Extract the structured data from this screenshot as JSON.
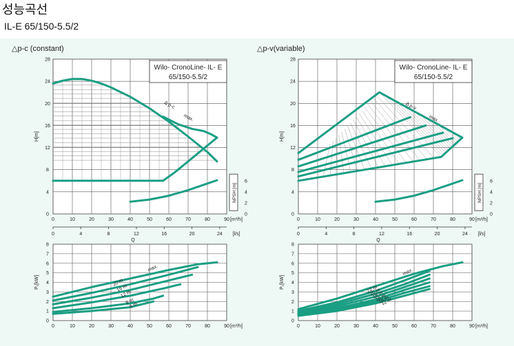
{
  "page": {
    "title": "성능곡선",
    "model": "IL-E 65/150-5.5/2"
  },
  "colors": {
    "curve": "#1a9e83",
    "grid": "#555555",
    "hatch": "#888888",
    "panel_bg": "#eef8f5"
  },
  "chart_data": [
    {
      "id": "h_constant",
      "type": "line",
      "title": "△p-c (constant)",
      "legend_box": [
        "Wilo- CronoLine- IL- E",
        "65/150-5.5/2"
      ],
      "ylabel": "H[m]",
      "x_unit": "[m³/h]",
      "xlim": [
        0,
        90
      ],
      "ylim": [
        0,
        28
      ],
      "x_ticks": [
        0,
        10,
        20,
        30,
        40,
        50,
        60,
        70,
        80,
        90
      ],
      "y_ticks": [
        0,
        4,
        8,
        12,
        16,
        20,
        24,
        28
      ],
      "annotations": [
        "Δ p-c",
        "max."
      ],
      "series": [
        {
          "role": "max",
          "x": [
            0,
            5,
            10,
            15,
            20,
            25,
            30,
            40,
            50,
            60,
            70,
            80,
            85
          ],
          "y": [
            23.6,
            24.1,
            24.4,
            24.4,
            24.1,
            23.6,
            22.9,
            21.2,
            19.1,
            16.7,
            14.0,
            11.2,
            9.5
          ]
        },
        {
          "role": "max-left",
          "x": [
            0,
            5,
            10,
            15
          ],
          "y": [
            23.6,
            24.1,
            24.4,
            24.4
          ]
        },
        {
          "role": "max-right",
          "x": [
            57,
            65,
            72,
            78,
            82,
            85
          ],
          "y": [
            17.6,
            16.2,
            15.4,
            15.0,
            14.4,
            13.8
          ]
        },
        {
          "role": "min",
          "x": [
            0,
            57
          ],
          "y": [
            6,
            6
          ]
        },
        {
          "role": "min-curve",
          "x": [
            57,
            63,
            70,
            78,
            85
          ],
          "y": [
            6,
            7.5,
            9.5,
            11.8,
            13.8
          ]
        }
      ],
      "npsh": {
        "label": "NPSH [m]",
        "ticks": [
          0,
          2,
          4,
          6
        ],
        "x": [
          40,
          50,
          60,
          70,
          80,
          85
        ],
        "y": [
          2.2,
          2.6,
          3.3,
          4.3,
          5.5,
          6.1
        ]
      },
      "secondary_axis": {
        "unit": "[l/s]",
        "ticks": [
          0,
          4,
          8,
          12,
          16,
          20,
          24
        ]
      },
      "center_label": "Q"
    },
    {
      "id": "h_variable",
      "type": "line",
      "title": "△p-v(variable)",
      "legend_box": [
        "Wilo- CronoLine- IL- E",
        "65/150-5.5/2"
      ],
      "ylabel": "H[m]",
      "x_unit": "[m³/h]",
      "xlim": [
        0,
        90
      ],
      "ylim": [
        0,
        28
      ],
      "x_ticks": [
        0,
        10,
        20,
        30,
        40,
        50,
        60,
        70,
        80,
        90
      ],
      "y_ticks": [
        0,
        4,
        8,
        12,
        16,
        20,
        24,
        28
      ],
      "annotations": [
        "Δ p-v",
        "max."
      ],
      "series": [
        {
          "role": "envelope-upper",
          "x": [
            0,
            42,
            85
          ],
          "y": [
            11,
            22,
            13.8
          ]
        },
        {
          "role": "envelope-lower",
          "x": [
            0,
            74,
            85
          ],
          "y": [
            6,
            10.3,
            13.8
          ]
        },
        {
          "role": "level",
          "x": [
            0,
            58
          ],
          "y": [
            9.8,
            17.5
          ]
        },
        {
          "role": "level",
          "x": [
            0,
            66
          ],
          "y": [
            8.6,
            16.0
          ]
        },
        {
          "role": "level",
          "x": [
            0,
            75
          ],
          "y": [
            7.6,
            14.7
          ]
        },
        {
          "role": "level",
          "x": [
            0,
            80
          ],
          "y": [
            6.8,
            13.7
          ]
        }
      ],
      "npsh": {
        "label": "NPSH [m]",
        "ticks": [
          0,
          2,
          4,
          6
        ],
        "x": [
          40,
          50,
          60,
          70,
          80,
          85
        ],
        "y": [
          2.2,
          2.6,
          3.3,
          4.3,
          5.5,
          6.1
        ]
      },
      "secondary_axis": {
        "unit": "[l/s]",
        "ticks": [
          0,
          4,
          8,
          12,
          16,
          20,
          24
        ]
      },
      "center_label": "Q"
    },
    {
      "id": "p_constant",
      "type": "line",
      "ylabel": "P₁[kW]",
      "x_unit": "[m³/h]",
      "xlim": [
        0,
        90
      ],
      "ylim": [
        0,
        8
      ],
      "x_ticks": [
        0,
        10,
        20,
        30,
        40,
        50,
        60,
        70,
        80,
        90
      ],
      "y_ticks": [
        0,
        1,
        2,
        3,
        4,
        5,
        6,
        7,
        8
      ],
      "series": [
        {
          "name": "max.",
          "x": [
            0,
            20,
            40,
            60,
            75,
            85
          ],
          "y": [
            2.5,
            3.5,
            4.4,
            5.3,
            5.9,
            6.1
          ]
        },
        {
          "name": "20 m",
          "x": [
            0,
            20,
            40,
            60,
            75
          ],
          "y": [
            2.1,
            2.9,
            3.8,
            4.8,
            5.6
          ]
        },
        {
          "name": "16 m",
          "x": [
            0,
            20,
            40,
            60,
            72
          ],
          "y": [
            1.7,
            2.4,
            3.2,
            4.2,
            4.8
          ]
        },
        {
          "name": "12 m",
          "x": [
            0,
            20,
            40,
            58,
            66
          ],
          "y": [
            1.3,
            1.9,
            2.6,
            3.4,
            3.8
          ]
        },
        {
          "name": "8 m",
          "x": [
            0,
            20,
            40,
            52,
            57
          ],
          "y": [
            0.9,
            1.3,
            1.8,
            2.3,
            2.6
          ]
        },
        {
          "name": "6 m",
          "x": [
            0,
            20,
            40,
            48,
            52
          ],
          "y": [
            0.7,
            1.0,
            1.4,
            1.8,
            2.0
          ]
        }
      ]
    },
    {
      "id": "p_variable",
      "type": "line",
      "ylabel": "P₁[kW]",
      "x_unit": "[m³/h]",
      "xlim": [
        0,
        90
      ],
      "ylim": [
        0,
        8
      ],
      "x_ticks": [
        0,
        10,
        20,
        30,
        40,
        50,
        60,
        70,
        80,
        90
      ],
      "y_ticks": [
        0,
        1,
        2,
        3,
        4,
        5,
        6,
        7,
        8
      ],
      "series": [
        {
          "name": "max.",
          "x": [
            0,
            20,
            40,
            60,
            75,
            85
          ],
          "y": [
            1.2,
            2.3,
            3.6,
            4.9,
            5.7,
            6.1
          ]
        },
        {
          "name": "22 m",
          "x": [
            0,
            20,
            40,
            55,
            68
          ],
          "y": [
            1.0,
            1.9,
            3.1,
            4.2,
            5.2
          ]
        },
        {
          "name": "20 m",
          "x": [
            0,
            20,
            40,
            55,
            68
          ],
          "y": [
            0.9,
            1.7,
            2.8,
            3.8,
            4.8
          ]
        },
        {
          "name": "18 m",
          "x": [
            0,
            20,
            40,
            55,
            68
          ],
          "y": [
            0.8,
            1.5,
            2.5,
            3.5,
            4.4
          ]
        },
        {
          "name": "16 m",
          "x": [
            0,
            20,
            40,
            55,
            68
          ],
          "y": [
            0.7,
            1.3,
            2.2,
            3.2,
            4.0
          ]
        },
        {
          "name": "14 m",
          "x": [
            0,
            20,
            40,
            55,
            68
          ],
          "y": [
            0.6,
            1.1,
            2.0,
            2.9,
            3.6
          ]
        },
        {
          "name": "12 m",
          "x": [
            0,
            20,
            40,
            55,
            68
          ],
          "y": [
            0.5,
            1.0,
            1.8,
            2.6,
            3.3
          ]
        }
      ]
    }
  ]
}
